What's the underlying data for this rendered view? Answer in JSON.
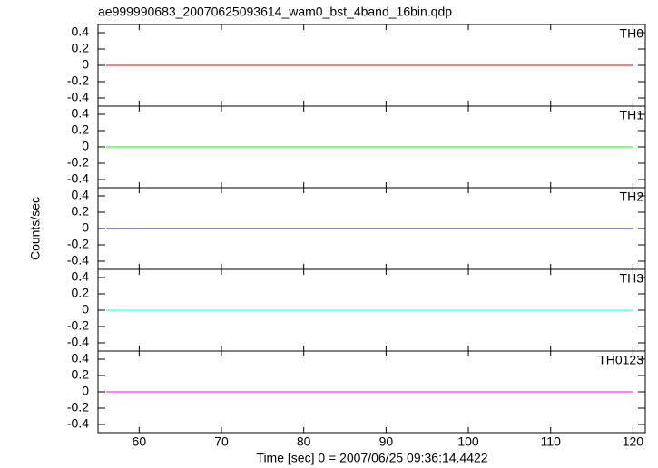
{
  "title": "ae999990683_20070625093614_wam0_bst_4band_16bin.qdp",
  "xlabel": "Time [sec] 0 = 2007/06/25 09:36:14.4422",
  "ylabel": "Counts/sec",
  "xlim": [
    55,
    121.5
  ],
  "xticks": [
    60,
    70,
    80,
    90,
    100,
    110,
    120
  ],
  "chart_data": [
    {
      "type": "line",
      "label": "TH0",
      "x": [
        56,
        120
      ],
      "values": [
        0,
        0
      ],
      "color": "#ff0000",
      "ylim": [
        -0.5,
        0.5
      ],
      "yticks": [
        -0.4,
        -0.2,
        0,
        0.2,
        0.4
      ]
    },
    {
      "type": "line",
      "label": "TH1",
      "x": [
        56,
        120
      ],
      "values": [
        0,
        0
      ],
      "color": "#00ff00",
      "ylim": [
        -0.5,
        0.5
      ],
      "yticks": [
        -0.4,
        -0.2,
        0,
        0.2,
        0.4
      ]
    },
    {
      "type": "line",
      "label": "TH2",
      "x": [
        56,
        120
      ],
      "values": [
        0,
        0
      ],
      "color": "#0000ff",
      "ylim": [
        -0.5,
        0.5
      ],
      "yticks": [
        -0.4,
        -0.2,
        0,
        0.2,
        0.4
      ]
    },
    {
      "type": "line",
      "label": "TH3",
      "x": [
        56,
        120
      ],
      "values": [
        0,
        0
      ],
      "color": "#00ffff",
      "ylim": [
        -0.5,
        0.5
      ],
      "yticks": [
        -0.4,
        -0.2,
        0,
        0.2,
        0.4
      ]
    },
    {
      "type": "line",
      "label": "TH0123",
      "x": [
        56,
        120
      ],
      "values": [
        0,
        0
      ],
      "color": "#ff00ff",
      "ylim": [
        -0.5,
        0.5
      ],
      "yticks": [
        -0.4,
        -0.2,
        0,
        0.2,
        0.4
      ]
    }
  ]
}
